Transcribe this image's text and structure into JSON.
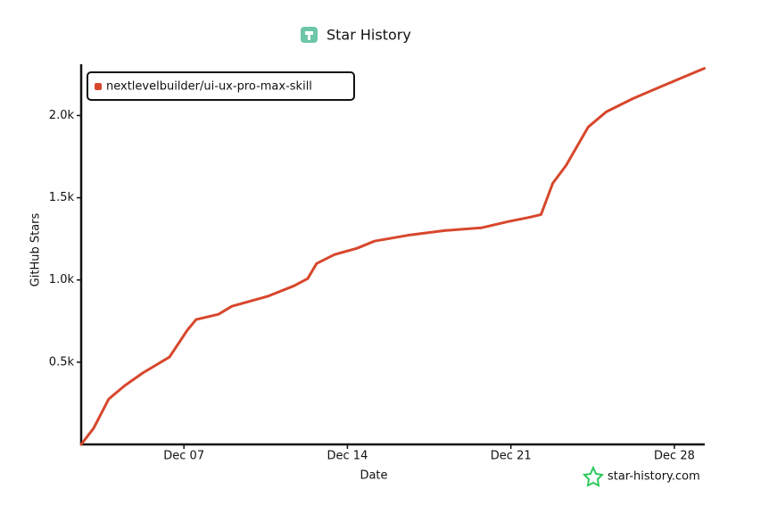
{
  "chart_data": {
    "type": "line",
    "title": "Star History",
    "xlabel": "Date",
    "ylabel": "GitHub Stars",
    "watermark": "star-history.com",
    "x": [
      2.6,
      3.13,
      3.78,
      4.47,
      5.23,
      6.38,
      7.14,
      7.52,
      8.48,
      9.05,
      10.58,
      11.72,
      12.3,
      12.68,
      13.44,
      14.4,
      15.16,
      16.69,
      18.2,
      19.73,
      20.88,
      21.83,
      22.29,
      22.79,
      23.36,
      24.31,
      25.08,
      26.22,
      27.37,
      29.28
    ],
    "series": [
      {
        "name": "nextlevelbuilder/ui-ux-pro-max-skill",
        "color": "#d7472c",
        "values": [
          0,
          98,
          276,
          358,
          434,
          531,
          694,
          759,
          791,
          840,
          900,
          965,
          1008,
          1100,
          1154,
          1192,
          1236,
          1274,
          1301,
          1317,
          1355,
          1382,
          1398,
          1588,
          1696,
          1930,
          2022,
          2103,
          2173,
          2287
        ]
      }
    ],
    "xlim": [
      2.6,
      29.3
    ],
    "xticks": [
      {
        "value": 7,
        "label": "Dec 07"
      },
      {
        "value": 14,
        "label": "Dec 14"
      },
      {
        "value": 21,
        "label": "Dec 21"
      },
      {
        "value": 28,
        "label": "Dec 28"
      }
    ],
    "ylim": [
      0,
      2290
    ],
    "yticks": [
      {
        "value": 500,
        "label": "0.5k"
      },
      {
        "value": 1000,
        "label": "1.0k"
      },
      {
        "value": 1500,
        "label": "1.5k"
      },
      {
        "value": 2000,
        "label": "2.0k"
      }
    ],
    "legend": "top-left",
    "grid": false
  }
}
